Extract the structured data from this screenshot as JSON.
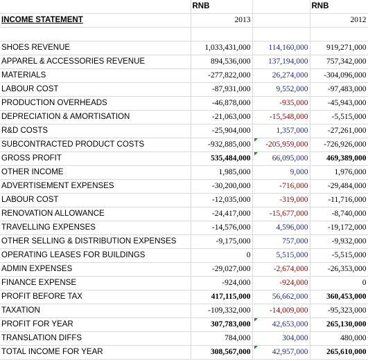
{
  "header": {
    "col_a_label": "RNB",
    "col_c_label": "RNB",
    "statement_title": "INCOME STATEMENT",
    "year_a": "2013",
    "year_c": "2012"
  },
  "rows": [
    {
      "label": "",
      "a": "",
      "b": "",
      "c": "",
      "bold": false,
      "b_color": ""
    },
    {
      "label": "SHOES REVENUE",
      "a": "1,033,431,000",
      "b": "114,160,000",
      "c": "919,271,000",
      "bold": false,
      "b_color": "pos"
    },
    {
      "label": "APPAREL & ACCESSORIES REVENUE",
      "a": "894,536,000",
      "b": "137,194,000",
      "c": "757,342,000",
      "bold": false,
      "b_color": "pos"
    },
    {
      "label": "MATERIALS",
      "a": "-277,822,000",
      "b": "26,274,000",
      "c": "-304,096,000",
      "bold": false,
      "b_color": "pos"
    },
    {
      "label": "LABOUR COST",
      "a": "-87,931,000",
      "b": "9,552,000",
      "c": "-97,483,000",
      "bold": false,
      "b_color": "pos"
    },
    {
      "label": "PRODUCTION OVERHEADS",
      "a": "-46,878,000",
      "b": "-935,000",
      "c": "-45,943,000",
      "bold": false,
      "b_color": "neg"
    },
    {
      "label": "DEPRECIATION & AMORTISATION",
      "a": "-21,063,000",
      "b": "-15,548,000",
      "c": "-5,515,000",
      "bold": false,
      "b_color": "neg"
    },
    {
      "label": "R&D COSTS",
      "a": "-25,904,000",
      "b": "1,357,000",
      "c": "-27,261,000",
      "bold": false,
      "b_color": "pos"
    },
    {
      "label": "SUBCONTRACTED PRODUCT COSTS",
      "a": "-932,885,000",
      "b": "-205,959,000",
      "c": "-726,926,000",
      "bold": false,
      "b_color": "neg",
      "b_tri": true
    },
    {
      "label": "GROSS PROFIT",
      "a": "535,484,000",
      "b": "66,095,000",
      "c": "469,389,000",
      "bold": true,
      "b_color": "pos",
      "b_tri": true
    },
    {
      "label": "OTHER INCOME",
      "a": "1,985,000",
      "b": "9,000",
      "c": "1,976,000",
      "bold": false,
      "b_color": "pos"
    },
    {
      "label": "ADVERTISEMENT EXPENSES",
      "a": "-30,200,000",
      "b": "-716,000",
      "c": "-29,484,000",
      "bold": false,
      "b_color": "neg"
    },
    {
      "label": "LABOUR COST",
      "a": "-12,035,000",
      "b": "-319,000",
      "c": "-11,716,000",
      "bold": false,
      "b_color": "neg"
    },
    {
      "label": "RENOVATION ALLOWANCE",
      "a": "-24,417,000",
      "b": "-15,677,000",
      "c": "-8,740,000",
      "bold": false,
      "b_color": "neg"
    },
    {
      "label": "TRAVELLING EXPENSES",
      "a": "-14,576,000",
      "b": "4,596,000",
      "c": "-19,172,000",
      "bold": false,
      "b_color": "pos"
    },
    {
      "label": "OTHER SELLING & DISTRIBUTION EXPENSES",
      "a": "-9,175,000",
      "b": "757,000",
      "c": "-9,932,000",
      "bold": false,
      "b_color": "pos"
    },
    {
      "label": "OPERATING LEASES FOR BUILDINGS",
      "a": "0",
      "b": "5,515,000",
      "c": "-5,515,000",
      "bold": false,
      "b_color": "pos"
    },
    {
      "label": "ADMIN EXPENSES",
      "a": "-29,027,000",
      "b": "-2,674,000",
      "c": "-26,353,000",
      "bold": false,
      "b_color": "neg"
    },
    {
      "label": "FINANCE EXPENSE",
      "a": "-924,000",
      "b": "-924,000",
      "c": "0",
      "bold": false,
      "b_color": "neg"
    },
    {
      "label": "PROFIT BEFORE TAX",
      "a": "417,115,000",
      "b": "56,662,000",
      "c": "360,453,000",
      "bold": true,
      "b_color": "pos"
    },
    {
      "label": "TAXATION",
      "a": "-109,332,000",
      "b": "-14,009,000",
      "c": "-95,323,000",
      "bold": false,
      "b_color": "neg"
    },
    {
      "label": "PROFIT FOR YEAR",
      "a": "307,783,000",
      "b": "42,653,000",
      "c": "265,130,000",
      "bold": true,
      "b_color": "pos",
      "b_tri": true
    },
    {
      "label": "TRANSLATION DIFFS",
      "a": "784,000",
      "b": "304,000",
      "c": "480,000",
      "bold": false,
      "b_color": "pos"
    },
    {
      "label": "TOTAL INCOME FOR YEAR",
      "a": "308,567,000",
      "b": "42,957,000",
      "c": "265,610,000",
      "bold": true,
      "b_color": "pos",
      "b_tri": true
    }
  ],
  "colors": {
    "positive_delta": "#1f2a8c",
    "negative_delta": "#a00000",
    "gridline": "#d9d9d9",
    "marker": "#1a8a2a"
  }
}
